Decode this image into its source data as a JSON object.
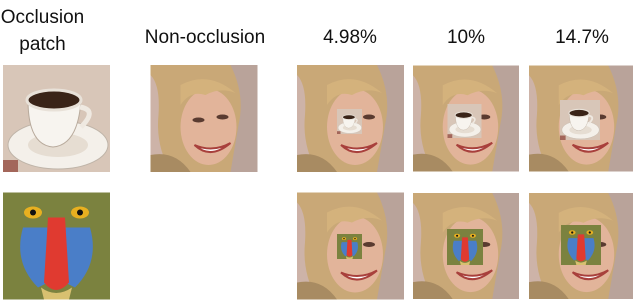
{
  "columns": [
    "Occlusion patch",
    "Non-occlusion",
    "4.98%",
    "10%",
    "14.7%"
  ]
}
